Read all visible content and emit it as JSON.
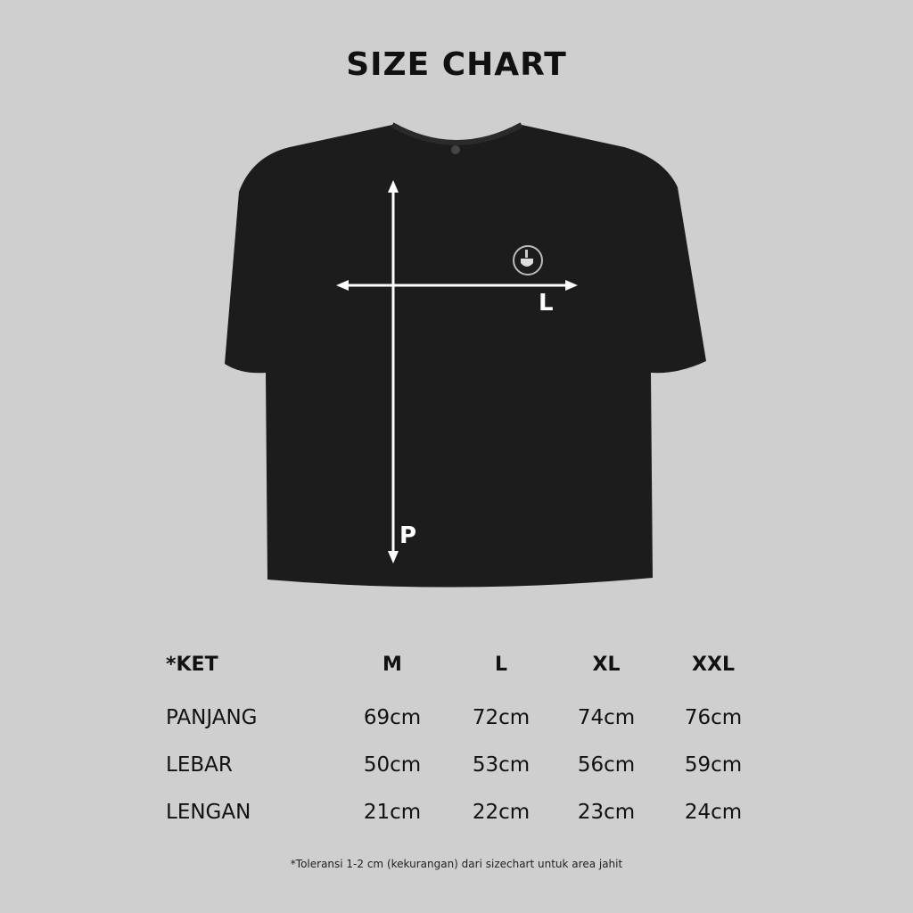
{
  "title": "SIZE CHART",
  "diagram": {
    "length_label": "P",
    "width_label": "L",
    "shirt_color": "#1c1c1c",
    "logo_icon": "coffee-cup-logo"
  },
  "table": {
    "header": [
      "*KET",
      "M",
      "L",
      "XL",
      "XXL"
    ],
    "rows": [
      {
        "label": "PANJANG",
        "values": [
          "69cm",
          "72cm",
          "74cm",
          "76cm"
        ]
      },
      {
        "label": "LEBAR",
        "values": [
          "50cm",
          "53cm",
          "56cm",
          "59cm"
        ]
      },
      {
        "label": "LENGAN",
        "values": [
          "21cm",
          "22cm",
          "23cm",
          "24cm"
        ]
      }
    ]
  },
  "footnote": "*Toleransi 1-2 cm (kekurangan) dari sizechart untuk area jahit"
}
